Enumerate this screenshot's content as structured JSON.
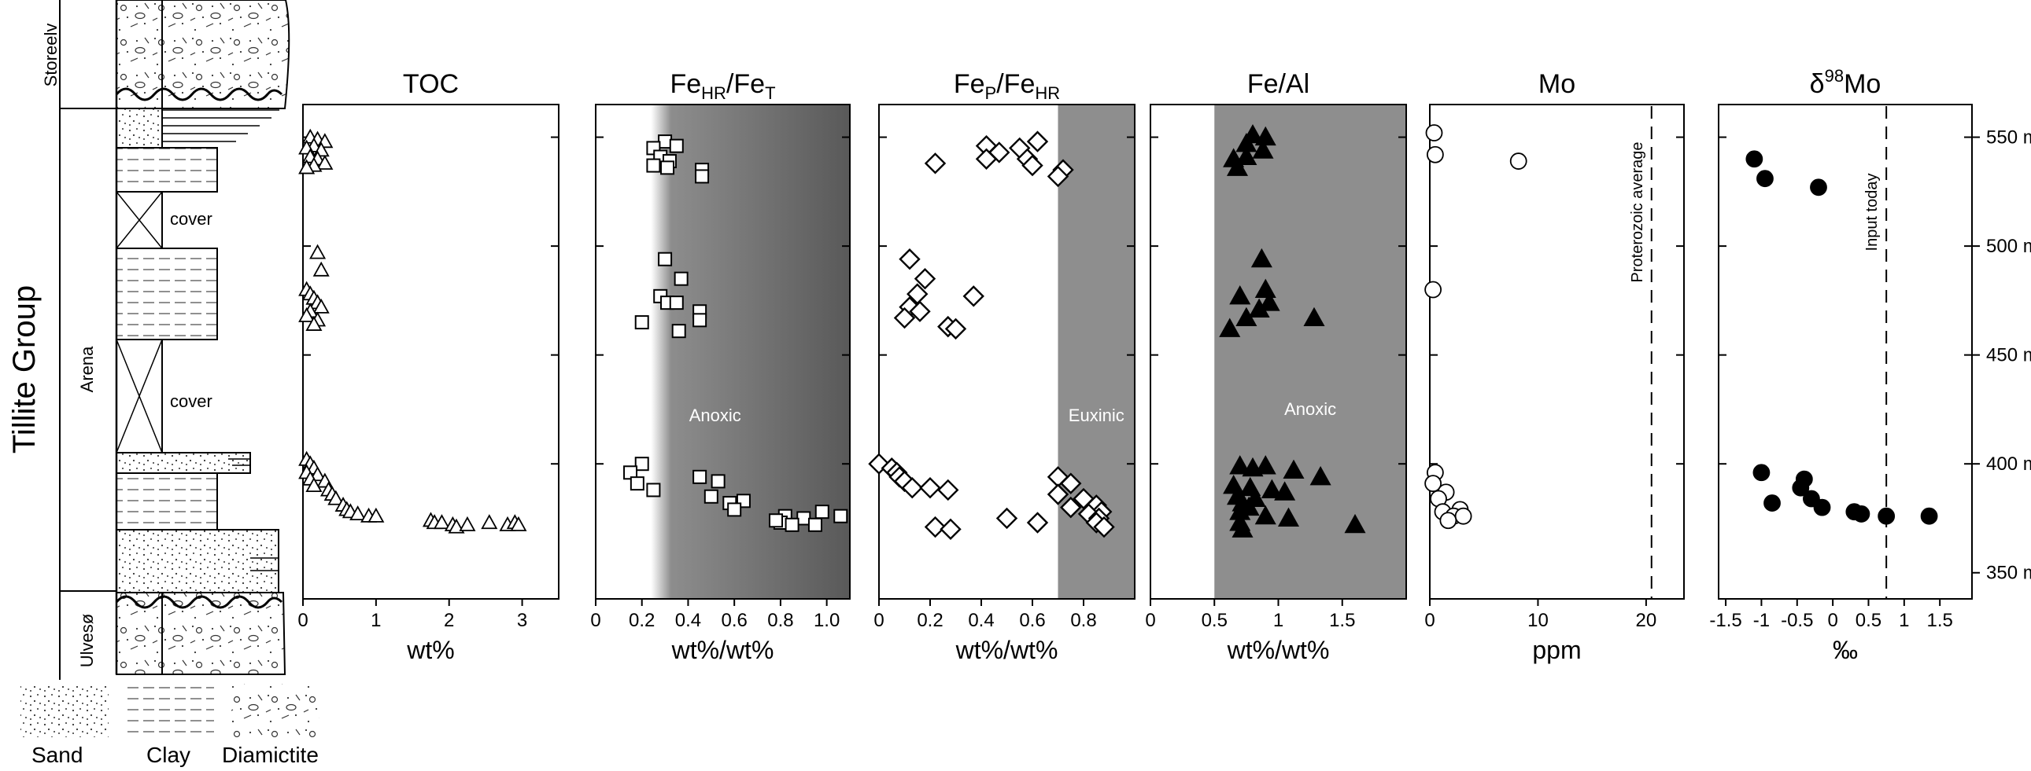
{
  "figure": {
    "group_label": "Tillite Group",
    "formations": [
      "Storeelv",
      "Arena",
      "Ulvesø"
    ],
    "cover_labels": [
      "cover",
      "cover"
    ],
    "lithology_legend": [
      {
        "label": "Sand",
        "pattern": "sand"
      },
      {
        "label": "Clay",
        "pattern": "clay"
      },
      {
        "label": "Diamictite",
        "pattern": "diamictite"
      }
    ],
    "height_axis": {
      "ticks": [
        "550 m",
        "500 m",
        "450 m",
        "400 m",
        "350 m"
      ],
      "values": [
        550,
        500,
        450,
        400,
        350
      ]
    }
  },
  "chart_data": [
    {
      "type": "scatter",
      "id": "toc",
      "title": "TOC",
      "xlabel": "wt%",
      "xlim": [
        0,
        3.5
      ],
      "ylim": [
        338,
        565
      ],
      "xticks": [
        0,
        1,
        2,
        3
      ],
      "xtick_labels": [
        "0",
        "1",
        "2",
        "3"
      ],
      "marker": "triangle-open",
      "points": [
        [
          0.1,
          550
        ],
        [
          0.2,
          549
        ],
        [
          0.3,
          548
        ],
        [
          0.15,
          546
        ],
        [
          0.05,
          545
        ],
        [
          0.25,
          544
        ],
        [
          0.1,
          541
        ],
        [
          0.2,
          540
        ],
        [
          0.3,
          538
        ],
        [
          0.15,
          537
        ],
        [
          0.05,
          536
        ],
        [
          0.2,
          497
        ],
        [
          0.25,
          489
        ],
        [
          0.05,
          480
        ],
        [
          0.1,
          478
        ],
        [
          0.15,
          476
        ],
        [
          0.2,
          474
        ],
        [
          0.25,
          472
        ],
        [
          0.1,
          470
        ],
        [
          0.05,
          468
        ],
        [
          0.2,
          466
        ],
        [
          0.15,
          464
        ],
        [
          0.05,
          402
        ],
        [
          0.1,
          400
        ],
        [
          0.15,
          398
        ],
        [
          0.05,
          396
        ],
        [
          0.2,
          395
        ],
        [
          0.1,
          393
        ],
        [
          0.3,
          392
        ],
        [
          0.15,
          390
        ],
        [
          0.35,
          388
        ],
        [
          0.4,
          386
        ],
        [
          0.45,
          384
        ],
        [
          0.55,
          381
        ],
        [
          0.6,
          379
        ],
        [
          0.65,
          378
        ],
        [
          0.75,
          377
        ],
        [
          0.9,
          376
        ],
        [
          1.0,
          376
        ],
        [
          1.75,
          374
        ],
        [
          1.8,
          373
        ],
        [
          1.9,
          373
        ],
        [
          2.05,
          372
        ],
        [
          2.1,
          371
        ],
        [
          2.25,
          372
        ],
        [
          2.55,
          373
        ],
        [
          2.8,
          372
        ],
        [
          2.9,
          373
        ],
        [
          2.95,
          372
        ]
      ]
    },
    {
      "type": "scatter",
      "id": "fehr",
      "title": "FeHR/FeT",
      "xlabel": "wt%/wt%",
      "xlim": [
        0,
        1.1
      ],
      "ylim": [
        338,
        565
      ],
      "xticks": [
        0,
        0.2,
        0.4,
        0.6,
        0.8,
        1.0
      ],
      "xtick_labels": [
        "0",
        "0.2",
        "0.4",
        "0.6",
        "0.8",
        "1.0"
      ],
      "marker": "square-open",
      "zone": {
        "label": "Anoxic",
        "from": 0.24,
        "to": 1.1
      },
      "points": [
        [
          0.3,
          548
        ],
        [
          0.25,
          545
        ],
        [
          0.35,
          546
        ],
        [
          0.28,
          541
        ],
        [
          0.32,
          539
        ],
        [
          0.25,
          537
        ],
        [
          0.31,
          536
        ],
        [
          0.46,
          535
        ],
        [
          0.46,
          532
        ],
        [
          0.3,
          494
        ],
        [
          0.37,
          485
        ],
        [
          0.28,
          477
        ],
        [
          0.31,
          474
        ],
        [
          0.35,
          474
        ],
        [
          0.45,
          470
        ],
        [
          0.45,
          466
        ],
        [
          0.2,
          465
        ],
        [
          0.36,
          461
        ],
        [
          0.2,
          400
        ],
        [
          0.15,
          396
        ],
        [
          0.18,
          391
        ],
        [
          0.25,
          388
        ],
        [
          0.45,
          394
        ],
        [
          0.53,
          392
        ],
        [
          0.5,
          385
        ],
        [
          0.58,
          382
        ],
        [
          0.64,
          383
        ],
        [
          0.6,
          379
        ],
        [
          0.82,
          376
        ],
        [
          0.9,
          375
        ],
        [
          0.98,
          378
        ],
        [
          1.06,
          376
        ],
        [
          0.8,
          373
        ],
        [
          0.85,
          372
        ],
        [
          0.95,
          372
        ],
        [
          0.78,
          374
        ]
      ]
    },
    {
      "type": "scatter",
      "id": "fep",
      "title": "FeP/FeHR",
      "xlabel": "wt%/wt%",
      "xlim": [
        0,
        1.0
      ],
      "ylim": [
        338,
        565
      ],
      "xticks": [
        0,
        0.2,
        0.4,
        0.6,
        0.8
      ],
      "xtick_labels": [
        "0",
        "0.2",
        "0.4",
        "0.6",
        "0.8"
      ],
      "marker": "diamond-open",
      "zone": {
        "label": "Euxinic",
        "from": 0.7,
        "to": 1.0
      },
      "points": [
        [
          0.42,
          546
        ],
        [
          0.47,
          543
        ],
        [
          0.55,
          545
        ],
        [
          0.62,
          548
        ],
        [
          0.42,
          540
        ],
        [
          0.58,
          540
        ],
        [
          0.6,
          537
        ],
        [
          0.22,
          538
        ],
        [
          0.72,
          535
        ],
        [
          0.7,
          532
        ],
        [
          0.12,
          494
        ],
        [
          0.18,
          485
        ],
        [
          0.15,
          478
        ],
        [
          0.37,
          477
        ],
        [
          0.12,
          472
        ],
        [
          0.16,
          470
        ],
        [
          0.1,
          467
        ],
        [
          0.27,
          463
        ],
        [
          0.3,
          462
        ],
        [
          0.0,
          400
        ],
        [
          0.05,
          398
        ],
        [
          0.07,
          396
        ],
        [
          0.08,
          394
        ],
        [
          0.1,
          392
        ],
        [
          0.13,
          389
        ],
        [
          0.2,
          389
        ],
        [
          0.27,
          388
        ],
        [
          0.7,
          394
        ],
        [
          0.75,
          391
        ],
        [
          0.7,
          386
        ],
        [
          0.8,
          384
        ],
        [
          0.75,
          380
        ],
        [
          0.85,
          381
        ],
        [
          0.87,
          378
        ],
        [
          0.82,
          377
        ],
        [
          0.86,
          375
        ],
        [
          0.85,
          373
        ],
        [
          0.88,
          371
        ],
        [
          0.5,
          375
        ],
        [
          0.62,
          373
        ],
        [
          0.22,
          371
        ],
        [
          0.28,
          370
        ]
      ]
    },
    {
      "type": "scatter",
      "id": "feal",
      "title": "Fe/Al",
      "xlabel": "wt%/wt%",
      "xlim": [
        0,
        2.0
      ],
      "ylim": [
        338,
        565
      ],
      "xticks": [
        0,
        0.5,
        1,
        1.5
      ],
      "xtick_labels": [
        "0",
        "0.5",
        "1",
        "1.5"
      ],
      "marker": "triangle-filled",
      "zone": {
        "label": "Anoxic",
        "from": 0.5,
        "to": 2.0
      },
      "points": [
        [
          0.8,
          551
        ],
        [
          0.9,
          550
        ],
        [
          0.75,
          547
        ],
        [
          0.88,
          544
        ],
        [
          0.65,
          540
        ],
        [
          0.75,
          541
        ],
        [
          0.68,
          536
        ],
        [
          0.87,
          494
        ],
        [
          0.9,
          480
        ],
        [
          0.7,
          477
        ],
        [
          0.93,
          474
        ],
        [
          0.85,
          471
        ],
        [
          0.75,
          467
        ],
        [
          1.28,
          467
        ],
        [
          0.62,
          462
        ],
        [
          0.7,
          399
        ],
        [
          0.8,
          398
        ],
        [
          0.9,
          399
        ],
        [
          1.12,
          397
        ],
        [
          1.33,
          394
        ],
        [
          0.65,
          390
        ],
        [
          0.78,
          389
        ],
        [
          0.95,
          388
        ],
        [
          1.05,
          387
        ],
        [
          0.68,
          385
        ],
        [
          0.82,
          384
        ],
        [
          0.72,
          382
        ],
        [
          0.77,
          380
        ],
        [
          0.7,
          378
        ],
        [
          0.9,
          376
        ],
        [
          1.08,
          375
        ],
        [
          0.7,
          373
        ],
        [
          1.6,
          372
        ],
        [
          0.72,
          370
        ]
      ]
    },
    {
      "type": "scatter",
      "id": "mo",
      "title": "Mo",
      "xlabel": "ppm",
      "xlim": [
        0,
        23.5
      ],
      "ylim": [
        338,
        565
      ],
      "xticks": [
        0,
        10,
        20
      ],
      "xtick_labels": [
        "0",
        "10",
        "20"
      ],
      "marker": "circle-open",
      "reference_line": {
        "x": 20.5,
        "label": "Proterozoic average"
      },
      "points": [
        [
          0.4,
          552
        ],
        [
          0.5,
          542
        ],
        [
          8.2,
          539
        ],
        [
          0.3,
          480
        ],
        [
          0.5,
          396
        ],
        [
          0.3,
          391
        ],
        [
          1.5,
          387
        ],
        [
          0.8,
          384
        ],
        [
          2.8,
          379
        ],
        [
          1.2,
          378
        ],
        [
          2.2,
          376
        ],
        [
          3.1,
          376
        ],
        [
          1.7,
          374
        ]
      ]
    },
    {
      "type": "scatter",
      "id": "d98mo",
      "title": "δ98Mo",
      "xlabel": "‰",
      "xlim": [
        -1.6,
        1.95
      ],
      "ylim": [
        338,
        565
      ],
      "xticks": [
        -1.5,
        -1,
        -0.5,
        0,
        0.5,
        1,
        1.5
      ],
      "xtick_labels": [
        "-1.5",
        "-1",
        "-0.5",
        "0",
        "0.5",
        "1",
        "1.5"
      ],
      "marker": "circle-filled",
      "reference_line": {
        "x": 0.75,
        "label": "Input today"
      },
      "points": [
        [
          -1.1,
          540
        ],
        [
          -0.95,
          531
        ],
        [
          -0.2,
          527
        ],
        [
          -1.0,
          396
        ],
        [
          -0.85,
          382
        ],
        [
          -0.45,
          389
        ],
        [
          -0.4,
          393
        ],
        [
          -0.3,
          384
        ],
        [
          -0.15,
          380
        ],
        [
          0.3,
          378
        ],
        [
          0.4,
          377
        ],
        [
          0.75,
          376
        ],
        [
          1.35,
          376
        ]
      ]
    }
  ]
}
